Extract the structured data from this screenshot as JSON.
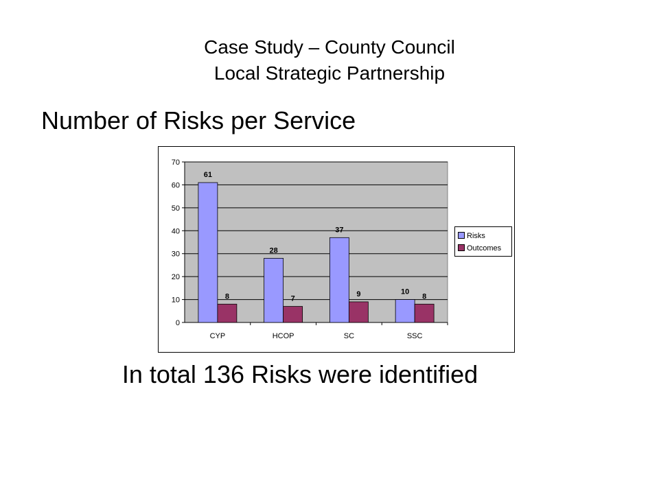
{
  "slide": {
    "title_line1": "Case Study – County Council",
    "title_line2": "Local Strategic Partnership",
    "heading": "Number of Risks per Service",
    "summary": "In total 136 Risks were identified"
  },
  "chart_data": {
    "type": "bar",
    "categories": [
      "CYP",
      "HCOP",
      "SC",
      "SSC"
    ],
    "series": [
      {
        "name": "Risks",
        "values": [
          61,
          28,
          37,
          10
        ],
        "color": "#9999ff"
      },
      {
        "name": "Outcomes",
        "values": [
          8,
          7,
          9,
          8
        ],
        "color": "#993366"
      }
    ],
    "ylim": [
      0,
      70
    ],
    "yticks": [
      0,
      10,
      20,
      30,
      40,
      50,
      60,
      70
    ],
    "grid": true,
    "plot_background": "#c0c0c0",
    "legend_position": "right",
    "data_labels": true
  }
}
